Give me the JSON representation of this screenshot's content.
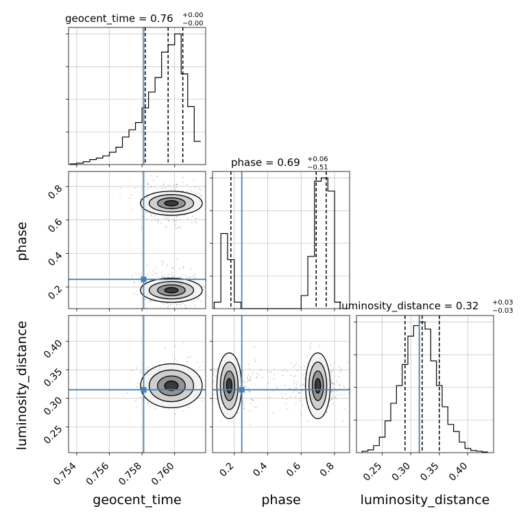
{
  "colors": {
    "truth": "#4682b4",
    "hist": "#000000",
    "grid": "#b0b0b0",
    "scatter": "#9a9a9a"
  },
  "chart_data": {
    "type": "corner",
    "parameters": [
      "geocent_time",
      "phase",
      "luminosity_distance"
    ],
    "axis_labels": [
      "geocent_time",
      "phase",
      "luminosity_distance"
    ],
    "ranges": {
      "geocent_time": [
        0.7535,
        0.7619
      ],
      "phase": [
        0.07,
        0.89
      ],
      "luminosity_distance": [
        0.205,
        0.445
      ]
    },
    "ticks": {
      "geocent_time": [
        "0.754",
        "0.756",
        "0.758",
        "0.760"
      ],
      "phase": [
        "0.2",
        "0.4",
        "0.6",
        "0.8"
      ],
      "luminosity_distance": [
        "0.25",
        "0.30",
        "0.35",
        "0.40"
      ]
    },
    "truths": {
      "geocent_time": 0.7581,
      "phase": 0.245,
      "luminosity_distance": 0.315
    },
    "titles": [
      {
        "param": "geocent_time",
        "prefix": "geocent_time = ",
        "median": "0.76",
        "plus": "+0.00",
        "minus": "−0.00"
      },
      {
        "param": "phase",
        "prefix": "phase = ",
        "median": "0.69",
        "plus": "+0.06",
        "minus": "−0.51"
      },
      {
        "param": "luminosity_distance",
        "prefix": "luminosity_distance = ",
        "median": "0.32",
        "plus": "+0.03",
        "minus": "−0.03"
      }
    ],
    "quantiles": {
      "geocent_time": [
        0.7582,
        0.7596,
        0.7605
      ],
      "phase": [
        0.18,
        0.69,
        0.75
      ],
      "luminosity_distance": [
        0.29,
        0.32,
        0.35
      ]
    },
    "histograms": {
      "geocent_time": {
        "edges": [
          0.7536,
          0.754,
          0.7544,
          0.7548,
          0.7552,
          0.7556,
          0.756,
          0.7564,
          0.7568,
          0.7572,
          0.7576,
          0.758,
          0.7584,
          0.7588,
          0.7592,
          0.7596,
          0.76,
          0.7604,
          0.7608,
          0.7612,
          0.7616
        ],
        "counts": [
          1,
          2,
          4,
          7,
          9,
          12,
          17,
          24,
          38,
          48,
          58,
          78,
          100,
          120,
          155,
          165,
          180,
          125,
          80,
          32
        ]
      },
      "phase": {
        "edges": [
          0.08,
          0.12,
          0.16,
          0.2,
          0.24,
          0.28,
          0.32,
          0.36,
          0.4,
          0.44,
          0.48,
          0.52,
          0.56,
          0.6,
          0.64,
          0.68,
          0.72,
          0.76,
          0.8,
          0.84
        ],
        "counts": [
          10,
          115,
          75,
          10,
          0,
          0,
          0,
          0,
          0,
          0,
          0,
          0,
          0,
          20,
          80,
          195,
          200,
          180,
          10
        ]
      },
      "luminosity_distance": {
        "edges": [
          0.215,
          0.225,
          0.235,
          0.245,
          0.255,
          0.265,
          0.275,
          0.285,
          0.295,
          0.305,
          0.315,
          0.325,
          0.335,
          0.345,
          0.355,
          0.365,
          0.375,
          0.385,
          0.395,
          0.405,
          0.415,
          0.425,
          0.435
        ],
        "counts": [
          2,
          4,
          10,
          22,
          45,
          70,
          95,
          125,
          165,
          180,
          185,
          175,
          130,
          95,
          65,
          40,
          30,
          15,
          6,
          3,
          2,
          1
        ]
      }
    },
    "density_2d": [
      {
        "x": "geocent_time",
        "y": "phase",
        "modes": [
          {
            "x": 0.7598,
            "y": 0.7
          },
          {
            "x": 0.7598,
            "y": 0.18
          }
        ]
      },
      {
        "x": "geocent_time",
        "y": "luminosity_distance",
        "modes": [
          {
            "x": 0.7598,
            "y": 0.322
          }
        ]
      },
      {
        "x": "phase",
        "y": "luminosity_distance",
        "modes": [
          {
            "x": 0.17,
            "y": 0.322
          },
          {
            "x": 0.7,
            "y": 0.322
          }
        ]
      }
    ],
    "grid": true
  }
}
